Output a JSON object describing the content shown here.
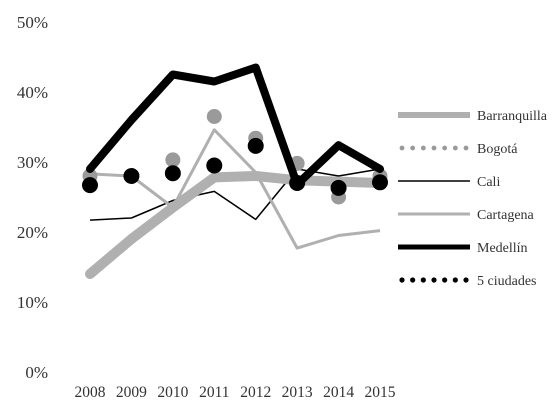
{
  "chart_data": {
    "type": "line",
    "title": "",
    "xlabel": "",
    "ylabel": "",
    "x": [
      "2008",
      "2009",
      "2010",
      "2011",
      "2012",
      "2013",
      "2014",
      "2015"
    ],
    "ylim": [
      0,
      50
    ],
    "yticks": [
      "0%",
      "10%",
      "20%",
      "30%",
      "40%",
      "50%"
    ],
    "grid": false,
    "legend_position": "right",
    "series": [
      {
        "name": "Barranquilla",
        "values": [
          14.0,
          19.0,
          23.5,
          27.8,
          28.0,
          27.4,
          27.2,
          27.0
        ],
        "color": "#b0b0b0",
        "style": "thick-solid"
      },
      {
        "name": "Bogotá",
        "values": [
          28.0,
          28.0,
          30.3,
          36.5,
          33.4,
          29.8,
          25.0,
          28.0
        ],
        "color": "#9a9a9a",
        "style": "dots"
      },
      {
        "name": "Cali",
        "values": [
          21.7,
          22.0,
          24.5,
          25.8,
          21.8,
          29.0,
          28.0,
          29.0
        ],
        "color": "#000000",
        "style": "thin-solid"
      },
      {
        "name": "Cartagena",
        "values": [
          28.3,
          28.0,
          23.5,
          34.6,
          28.5,
          17.7,
          19.5,
          20.2
        ],
        "color": "#b0b0b0",
        "style": "solid"
      },
      {
        "name": "Medellín",
        "values": [
          29.0,
          36.0,
          42.5,
          41.5,
          43.5,
          26.8,
          32.4,
          29.0
        ],
        "color": "#000000",
        "style": "thick-solid"
      },
      {
        "name": "5 ciudades",
        "values": [
          26.7,
          28.0,
          28.4,
          29.5,
          32.3,
          27.0,
          26.3,
          27.1
        ],
        "color": "#000000",
        "style": "dots"
      }
    ]
  }
}
